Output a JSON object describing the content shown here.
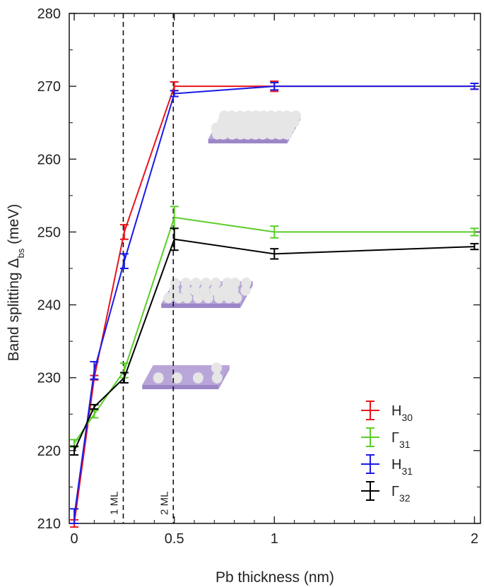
{
  "chart_data": {
    "type": "line",
    "xlabel": "Pb thickness (nm)",
    "ylabel_main": "Band splitting Δ",
    "ylabel_sub": "bs",
    "ylabel_unit": "(meV)",
    "xlim": [
      -0.025,
      2.03
    ],
    "ylim": [
      210,
      280
    ],
    "xticks": [
      0,
      0.5,
      1,
      2
    ],
    "xtick_labels": [
      "0",
      "0.5",
      "1",
      "2"
    ],
    "yticks": [
      210,
      220,
      230,
      240,
      250,
      260,
      270,
      280
    ],
    "grid": false,
    "legend_position": "bottom-right",
    "monolayer_lines": [
      {
        "x": 0.245,
        "label": "1 ML"
      },
      {
        "x": 0.495,
        "label": "2 ML"
      }
    ],
    "series": [
      {
        "name": "H",
        "sub": "30",
        "color": "#e8141c",
        "points": [
          {
            "x": 0,
            "y": 210,
            "err": 0.5
          },
          {
            "x": 0.1,
            "y": 230,
            "err": 0.3
          },
          {
            "x": 0.25,
            "y": 250,
            "err": 1.0
          },
          {
            "x": 0.5,
            "y": 270,
            "err": 0.6
          },
          {
            "x": 1,
            "y": 270,
            "err": 0.7
          },
          {
            "x": 2,
            "y": 270,
            "err": 0.4
          }
        ]
      },
      {
        "name": "Γ",
        "sub": "31",
        "color": "#5acd28",
        "points": [
          {
            "x": 0,
            "y": 221,
            "err": 0.5
          },
          {
            "x": 0.1,
            "y": 225,
            "err": 0.5
          },
          {
            "x": 0.25,
            "y": 231,
            "err": 1.0
          },
          {
            "x": 0.5,
            "y": 252,
            "err": 1.5
          },
          {
            "x": 1,
            "y": 250,
            "err": 0.8
          },
          {
            "x": 2,
            "y": 250,
            "err": 0.5
          }
        ]
      },
      {
        "name": "H",
        "sub": "31",
        "color": "#1a1ae6",
        "points": [
          {
            "x": 0,
            "y": 211,
            "err": 1.0
          },
          {
            "x": 0.1,
            "y": 231,
            "err": 1.2
          },
          {
            "x": 0.25,
            "y": 246,
            "err": 1.0
          },
          {
            "x": 0.5,
            "y": 269,
            "err": 0.4
          },
          {
            "x": 1,
            "y": 270,
            "err": 0.5
          },
          {
            "x": 2,
            "y": 270,
            "err": 0.4
          }
        ]
      },
      {
        "name": "Γ",
        "sub": "32",
        "color": "#000000",
        "points": [
          {
            "x": 0,
            "y": 220,
            "err": 0.6
          },
          {
            "x": 0.1,
            "y": 226,
            "err": 0.3
          },
          {
            "x": 0.25,
            "y": 230,
            "err": 0.7
          },
          {
            "x": 0.5,
            "y": 249,
            "err": 1.5
          },
          {
            "x": 1,
            "y": 247,
            "err": 0.7
          },
          {
            "x": 2,
            "y": 248,
            "err": 0.4
          }
        ]
      }
    ],
    "illustrations": [
      {
        "x": 0.75,
        "y": 262,
        "coverage": "dense"
      },
      {
        "x": 0.37,
        "y": 242,
        "coverage": "medium"
      },
      {
        "x": 0.33,
        "y": 230.5,
        "coverage": "sparse"
      }
    ],
    "colors": {
      "slab_top": "#b9a6d9",
      "slab_side": "#9d86c8",
      "particle": "#e6e6e6"
    }
  }
}
